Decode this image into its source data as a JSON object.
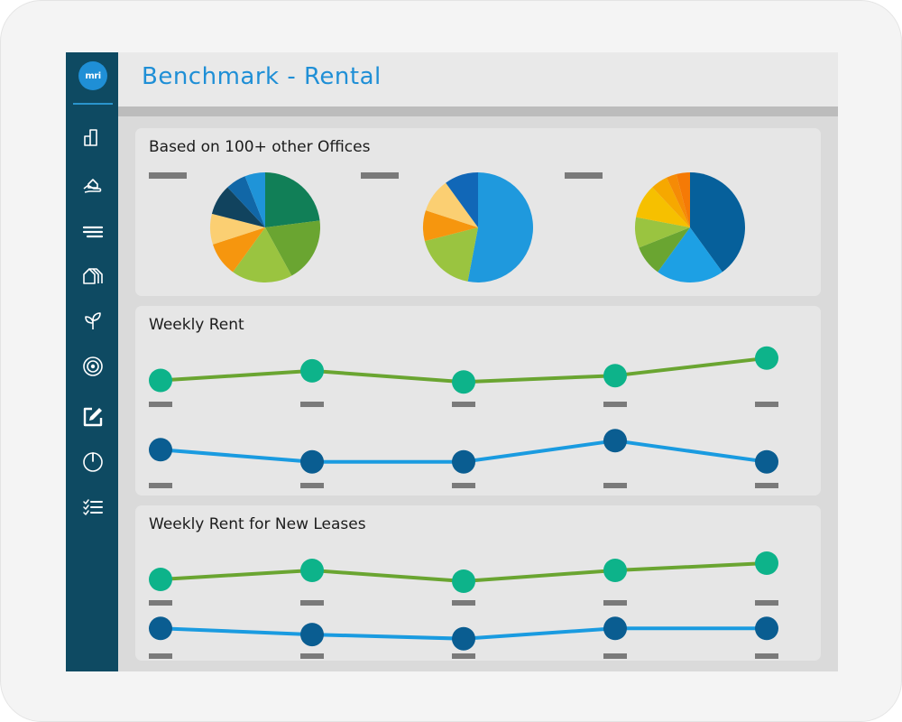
{
  "app": {
    "logo_text": "mri",
    "title": "Benchmark - Rental"
  },
  "sidebar": {
    "items": [
      {
        "icon": "building-icon"
      },
      {
        "icon": "hand-house-icon"
      },
      {
        "icon": "menu-lines-icon"
      },
      {
        "icon": "houses-icon"
      },
      {
        "icon": "plant-icon"
      },
      {
        "icon": "target-icon"
      },
      {
        "icon": "edit-icon"
      },
      {
        "icon": "power-icon"
      },
      {
        "icon": "checklist-icon"
      }
    ]
  },
  "panels": {
    "offices": {
      "title": "Based on 100+ other Offices"
    },
    "weekly_rent": {
      "title": "Weekly Rent"
    },
    "new_leases": {
      "title": "Weekly Rent for New Leases"
    }
  },
  "colors": {
    "green_line": "#6aa531",
    "green_point": "#0db38a",
    "blue_line": "#1a9be0",
    "blue_point": "#0a5d91",
    "placeholder": "#7a7a7a"
  },
  "chart_data": [
    {
      "type": "pie",
      "panel": "offices",
      "slices": [
        {
          "value": 23,
          "color": "#117f57"
        },
        {
          "value": 19,
          "color": "#6aa531"
        },
        {
          "value": 18,
          "color": "#9ac440"
        },
        {
          "value": 10,
          "color": "#f6960e"
        },
        {
          "value": 9,
          "color": "#fbcf72"
        },
        {
          "value": 9,
          "color": "#11435e"
        },
        {
          "value": 6,
          "color": "#1167a7"
        },
        {
          "value": 6,
          "color": "#1f94d8"
        }
      ]
    },
    {
      "type": "pie",
      "panel": "offices",
      "slices": [
        {
          "value": 53,
          "color": "#1f99dd"
        },
        {
          "value": 18,
          "color": "#9ac440"
        },
        {
          "value": 9,
          "color": "#f6960e"
        },
        {
          "value": 10,
          "color": "#fbcf72"
        },
        {
          "value": 10,
          "color": "#1167b7"
        }
      ]
    },
    {
      "type": "pie",
      "panel": "offices",
      "slices": [
        {
          "value": 40,
          "color": "#06609b"
        },
        {
          "value": 20,
          "color": "#1da0e4"
        },
        {
          "value": 9,
          "color": "#6aa531"
        },
        {
          "value": 9,
          "color": "#9ac440"
        },
        {
          "value": 10,
          "color": "#f6c000"
        },
        {
          "value": 5,
          "color": "#f6a800"
        },
        {
          "value": 3,
          "color": "#f58b06"
        },
        {
          "value": 4,
          "color": "#f57a06"
        }
      ]
    },
    {
      "type": "line",
      "panel": "weekly_rent",
      "series": [
        {
          "values": [
            2,
            2.6,
            1.9,
            2.3,
            3.4
          ]
        },
        {
          "values": [
            1.2,
            0.8,
            0.8,
            1.5,
            0.8
          ]
        }
      ]
    },
    {
      "type": "line",
      "panel": "new_leases",
      "series": [
        {
          "values": [
            1.6,
            2.1,
            1.5,
            2.1,
            2.5
          ]
        },
        {
          "values": [
            1.5,
            1.2,
            1.0,
            1.5,
            1.5
          ]
        }
      ]
    }
  ]
}
